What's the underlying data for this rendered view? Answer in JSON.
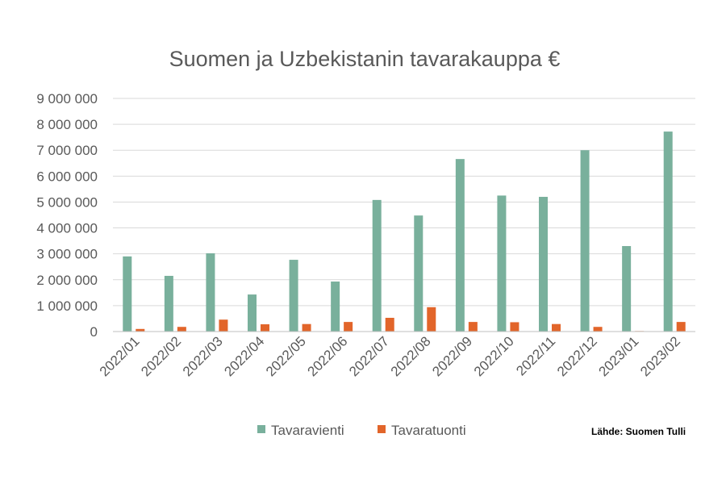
{
  "chart_data": {
    "type": "bar",
    "title": "Suomen ja Uzbekistanin tavarakauppa €",
    "categories": [
      "2022/01",
      "2022/02",
      "2022/03",
      "2022/04",
      "2022/05",
      "2022/06",
      "2022/07",
      "2022/08",
      "2022/09",
      "2022/10",
      "2022/11",
      "2022/12",
      "2023/01",
      "2023/02"
    ],
    "series": [
      {
        "name": "Tavaravienti",
        "color": "#79b09c",
        "values": [
          2900000,
          2150000,
          3020000,
          1430000,
          2770000,
          1930000,
          5080000,
          4480000,
          6660000,
          5250000,
          5200000,
          7000000,
          3300000,
          7720000
        ]
      },
      {
        "name": "Tavaratuonti",
        "color": "#e2652a",
        "values": [
          100000,
          180000,
          460000,
          280000,
          290000,
          370000,
          530000,
          940000,
          370000,
          360000,
          290000,
          180000,
          20000,
          370000
        ]
      }
    ],
    "ylim": [
      0,
      9000000
    ],
    "yticks": [
      0,
      1000000,
      2000000,
      3000000,
      4000000,
      5000000,
      6000000,
      7000000,
      8000000,
      9000000
    ],
    "ytick_labels": [
      "0",
      "1 000 000",
      "2 000 000",
      "3 000 000",
      "4 000 000",
      "5 000 000",
      "6 000 000",
      "7 000 000",
      "8 000 000",
      "9 000 000"
    ],
    "grid": true,
    "legend": "bottom",
    "source_note": "Lähde: Suomen Tulli"
  }
}
